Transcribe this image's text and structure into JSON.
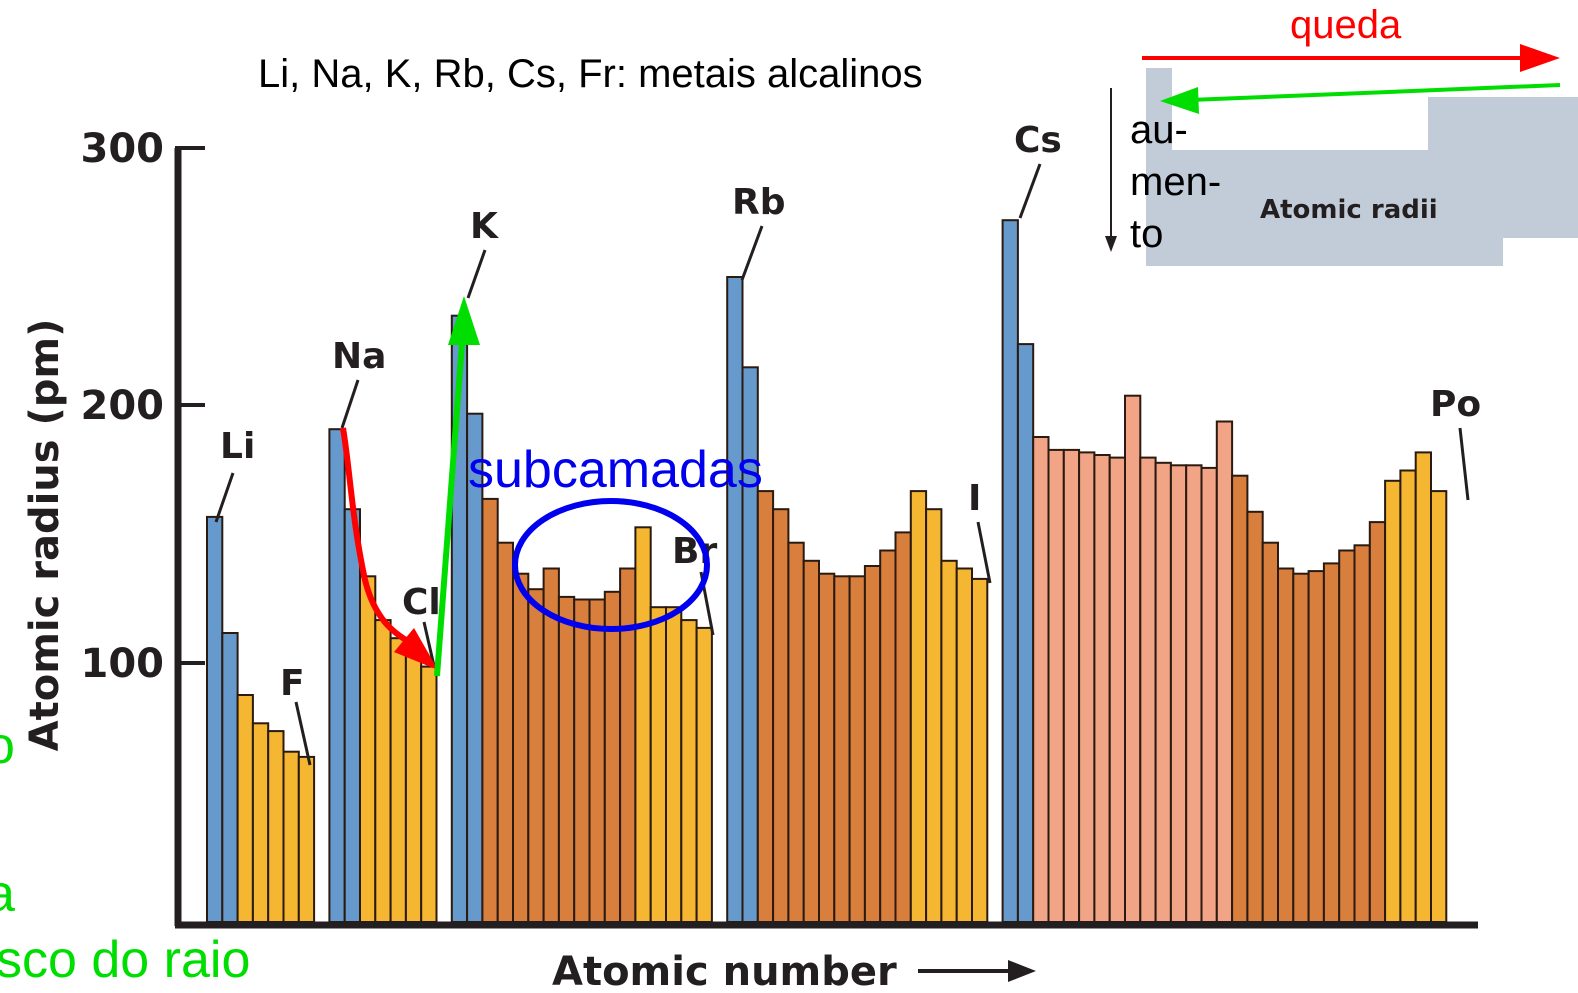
{
  "colors": {
    "alkali": "#6699cc",
    "p_block": "#f5b731",
    "d_block": "#d87f3e",
    "f_block": "#f2a487",
    "bar_stroke": "#2a1a10",
    "axis": "#231f20",
    "red_annotation": "#ff0000",
    "green_annotation": "#00dd00",
    "blue_annotation": "#0000ee",
    "inset_fill": "#c2ccd8"
  },
  "chart_data": {
    "type": "bar",
    "xlabel": "Atomic number",
    "ylabel": "Atomic radius (pm)",
    "ylim": [
      0,
      300
    ],
    "yticks": [
      "300",
      "200",
      "100"
    ],
    "grid": false,
    "series": [
      {
        "block": "alkali",
        "values": [
          157,
          112
        ]
      },
      {
        "block": "p",
        "values": [
          88,
          77,
          74,
          66,
          64
        ]
      },
      {
        "block": "alkali",
        "values": [
          191,
          160
        ]
      },
      {
        "block": "p",
        "values": [
          134,
          117,
          110,
          104,
          99
        ]
      },
      {
        "block": "alkali",
        "values": [
          235,
          197
        ]
      },
      {
        "block": "d",
        "values": [
          164,
          147,
          135,
          129,
          137,
          126,
          125,
          125,
          128,
          137
        ]
      },
      {
        "block": "p",
        "values": [
          153,
          122,
          122,
          117,
          114
        ]
      },
      {
        "block": "alkali",
        "values": [
          250,
          215
        ]
      },
      {
        "block": "d",
        "values": [
          167,
          160,
          147,
          140,
          135,
          134,
          134,
          138,
          144,
          151
        ]
      },
      {
        "block": "p",
        "values": [
          167,
          160,
          140,
          137,
          133
        ]
      },
      {
        "block": "alkali",
        "values": [
          272,
          224
        ]
      },
      {
        "block": "f",
        "values": [
          188,
          183,
          183,
          182,
          181,
          180,
          204,
          180,
          178,
          177,
          177,
          176,
          194
        ]
      },
      {
        "block": "d",
        "values": [
          173,
          159,
          147,
          137,
          135,
          136,
          139,
          144,
          146,
          155
        ]
      },
      {
        "block": "p",
        "values": [
          171,
          175,
          182,
          167
        ]
      }
    ],
    "element_labels": [
      "Li",
      "F",
      "Na",
      "Cl",
      "K",
      "Br",
      "Rb",
      "I",
      "Cs",
      "Po"
    ]
  },
  "annotations": {
    "header": "Li, Na, K, Rb, Cs, Fr: metais alcalinos",
    "queda": "queda",
    "aumento_1": "au-",
    "aumento_2": "men-",
    "aumento_3": "to",
    "subcamadas": "subcamadas",
    "left_green_1": "o",
    "left_green_2": "a",
    "left_green_3": "sco do raio",
    "inset_title": "Atomic radii"
  }
}
